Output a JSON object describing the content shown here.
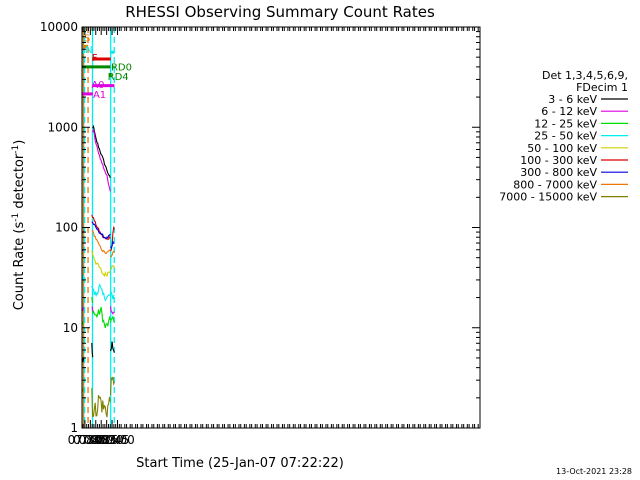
{
  "chart_data": {
    "type": "line",
    "title": "RHESSI Observing Summary Count Rates",
    "xlabel": "Start Time (25-Jan-07 07:22:22)",
    "ylabel_main": "Count Rate (s",
    "ylabel_sup": "-1",
    "ylabel_rest": " detector",
    "ylabel_end": ")",
    "x_start": "07:22:22",
    "x_range_min": [
      442,
      1540
    ],
    "y_scale": "log",
    "ylim": [
      1,
      10000
    ],
    "y_ticks": [
      {
        "v": 1,
        "label": "1"
      },
      {
        "v": 10,
        "label": "10"
      },
      {
        "v": 100,
        "label": "100"
      },
      {
        "v": 1000,
        "label": "1000"
      },
      {
        "v": 10000,
        "label": "10000"
      }
    ],
    "x_ticks": [
      {
        "t": 450,
        "label": "07:30"
      },
      {
        "t": 465,
        "label": "07:45"
      },
      {
        "t": 480,
        "label": "08:00"
      },
      {
        "t": 495,
        "label": "08:15"
      },
      {
        "t": 510,
        "label": "08:30"
      },
      {
        "t": 525,
        "label": "08:45"
      },
      {
        "t": 540,
        "label": "09:00"
      }
    ],
    "legend": {
      "header1": "Det 1,3,4,5,6,9,",
      "header2": "FDecim 1",
      "position": "right"
    },
    "series": [
      {
        "name": "3 - 6 keV",
        "color": "#000000",
        "segments": [
          {
            "t": [
              442.4,
              446.3
            ],
            "v": [
              4.8,
              4.8
            ],
            "noise": 0.06
          },
          {
            "t": [
              469.0,
              471.5
            ],
            "v": [
              6.0,
              4.8
            ],
            "noise": 0.07
          },
          {
            "t": [
              471.5,
              472.2,
              480,
              495,
              510,
              520.2
            ],
            "v": [
              1000,
              1060,
              770,
              540,
              380,
              305
            ],
            "noise": 0.015
          },
          {
            "t": [
              520.6,
              528,
              531.5
            ],
            "v": [
              6.0,
              7.0,
              6.0
            ],
            "noise": 0.07
          }
        ]
      },
      {
        "name": "6 - 12 keV",
        "color": "#e000e0",
        "segments": [
          {
            "t": [
              442.4,
              446.3
            ],
            "v": [
              15,
              15
            ],
            "noise": 0.03
          },
          {
            "t": [
              469.0,
              471.5
            ],
            "v": [
              16,
              15
            ],
            "noise": 0.03
          },
          {
            "t": [
              471.5,
              472.2,
              480,
              495,
              510,
              520.2
            ],
            "v": [
              900,
              1000,
              690,
              460,
              330,
              235
            ],
            "noise": 0.015
          },
          {
            "t": [
              520.6,
              528,
              531.5
            ],
            "v": [
              16,
              14,
              15
            ],
            "noise": 0.03
          }
        ]
      },
      {
        "name": "12 - 25 keV",
        "color": "#00dd00",
        "segments": [
          {
            "t": [
              442.4,
              446.3
            ],
            "v": [
              11,
              11
            ],
            "noise": 0.04
          },
          {
            "t": [
              469.0,
              471.5
            ],
            "v": [
              19,
              17
            ],
            "noise": 0.04
          },
          {
            "t": [
              471.5,
              480,
              495,
              505,
              515,
              520.2
            ],
            "v": [
              15,
              13,
              15,
              10,
              11,
              12
            ],
            "noise": 0.04
          },
          {
            "t": [
              520.6,
              528,
              531.5
            ],
            "v": [
              12,
              12,
              11
            ],
            "noise": 0.04
          }
        ]
      },
      {
        "name": "25 - 50 keV",
        "color": "#00eeee",
        "segments": [
          {
            "t": [
              442.4,
              446.3
            ],
            "v": [
              32,
              32
            ],
            "noise": 0.03
          },
          {
            "t": [
              469.0,
              471.5
            ],
            "v": [
              27,
              24
            ],
            "noise": 0.03
          },
          {
            "t": [
              471.5,
              480,
              490,
              500,
              510,
              520.2
            ],
            "v": [
              24,
              21,
              26,
              21,
              20,
              21
            ],
            "noise": 0.035
          },
          {
            "t": [
              520.6,
              528,
              531.5
            ],
            "v": [
              22,
              20,
              22
            ],
            "noise": 0.03
          }
        ]
      },
      {
        "name": "50 - 100 keV",
        "color": "#d0d000",
        "segments": [
          {
            "t": [
              442.4,
              446.3
            ],
            "v": [
              48,
              48
            ],
            "noise": 0.02
          },
          {
            "t": [
              469.0,
              480,
              490,
              500,
              510,
              520.2
            ],
            "v": [
              58,
              45,
              40,
              34,
              34,
              38
            ],
            "noise": 0.02
          },
          {
            "t": [
              520.6,
              524,
              528,
              531.5
            ],
            "v": [
              40,
              40,
              41,
              40
            ],
            "noise": 0.02
          }
        ]
      },
      {
        "name": "100 - 300 keV",
        "color": "#dd0000",
        "segments": [
          {
            "t": [
              442.4,
              446.3
            ],
            "v": [
              90,
              90
            ],
            "noise": 0.015
          },
          {
            "t": [
              469.0,
              480,
              490,
              500,
              510,
              520.2
            ],
            "v": [
              135,
              108,
              92,
              80,
              76,
              80
            ],
            "noise": 0.012
          },
          {
            "t": [
              520.6,
              524,
              528,
              531.5
            ],
            "v": [
              60,
              60,
              100,
              95
            ],
            "noise": 0.015
          }
        ]
      },
      {
        "name": "300 - 800 keV",
        "color": "#0000dd",
        "segments": [
          {
            "t": [
              442.4,
              446.3
            ],
            "v": [
              60,
              60
            ],
            "noise": 0.015
          },
          {
            "t": [
              469.0,
              480,
              490,
              500,
              510,
              520.2
            ],
            "v": [
              115,
              100,
              90,
              82,
              78,
              84
            ],
            "noise": 0.012
          },
          {
            "t": [
              520.6,
              524,
              528,
              531.5
            ],
            "v": [
              63,
              63,
              72,
              68
            ],
            "noise": 0.015
          }
        ]
      },
      {
        "name": "800 - 7000 keV",
        "color": "#ee7700",
        "segments": [
          {
            "t": [
              442.4,
              446.3
            ],
            "v": [
              55,
              55
            ],
            "noise": 0.015
          },
          {
            "t": [
              469.0,
              480,
              490,
              500,
              510,
              520.2
            ],
            "v": [
              95,
              78,
              66,
              58,
              55,
              60
            ],
            "noise": 0.012
          },
          {
            "t": [
              520.6,
              524,
              528,
              531.5
            ],
            "v": [
              50,
              50,
              60,
              58
            ],
            "noise": 0.015
          }
        ]
      },
      {
        "name": "7000 - 15000 keV",
        "color": "#808000",
        "segments": [
          {
            "t": [
              442.4,
              446.3
            ],
            "v": [
              2.5,
              2.5
            ],
            "noise": 0.07
          },
          {
            "t": [
              469.0,
              472,
              480,
              490,
              500,
              510,
              520.2
            ],
            "v": [
              2.5,
              1.4,
              1.5,
              2.0,
              1.6,
              1.5,
              1.9
            ],
            "noise": 0.1
          },
          {
            "t": [
              520.6,
              531.5
            ],
            "v": [
              2.5,
              3.2
            ],
            "noise": 0.08
          }
        ]
      }
    ],
    "flags": [
      {
        "label": "S",
        "color": "#ee7700",
        "t": [
          446.0,
          459.0
        ],
        "v": 6400,
        "label_t": 447.2,
        "label_v": 7900
      },
      {
        "label": "N",
        "color": "#00eeee",
        "t": [
          442.4,
          447.6
        ],
        "v": 5600,
        "label_t": 450.5,
        "label_v": 6000
      },
      {
        "label": "N",
        "color": "#00eeee",
        "t": [
          521.3,
          531.5
        ],
        "v": 5600,
        "label_t": null,
        "label_v": null
      },
      {
        "label": "F",
        "color": "#dd0000",
        "t": [
          470.2,
          521.0
        ],
        "v": 4800,
        "label_t": 468.8,
        "label_v": 5000
      },
      {
        "label": "RD0",
        "color": "#008800",
        "t": [
          442.4,
          520.2
        ],
        "v": 4000,
        "label_t": null,
        "label_v": null
      },
      {
        "label": "RD0",
        "color": "#008800",
        "t": [
          528.6,
          531.5
        ],
        "v": 4000,
        "label_t": 522.0,
        "label_v": 4050
      },
      {
        "label": "RD4",
        "color": "#008800",
        "t": [
          518.0,
          524.0
        ],
        "v": 3300,
        "label_t": 512.7,
        "label_v": 3250
      },
      {
        "label": "A0",
        "color": "#e000e0",
        "t": [
          470.5,
          531.5
        ],
        "v": 2600,
        "label_t": 467.8,
        "label_v": 2700
      },
      {
        "label": "A1",
        "color": "#e000e0",
        "t": [
          442.4,
          471.8
        ],
        "v": 2150,
        "label_t": 472.2,
        "label_v": 2150
      }
    ],
    "vlines": [
      {
        "t": 442.6,
        "color": "#00eeee",
        "style": "solid"
      },
      {
        "t": 446.5,
        "color": "#ee7700",
        "style": "solid"
      },
      {
        "t": 449.3,
        "color": "#00eeee",
        "style": "dashed"
      },
      {
        "t": 458.7,
        "color": "#ee7700",
        "style": "dashed"
      },
      {
        "t": 471.0,
        "color": "#00eeee",
        "style": "solid"
      },
      {
        "t": 521.2,
        "color": "#00eeee",
        "style": "solid"
      },
      {
        "t": 531.0,
        "color": "#00eeee",
        "style": "dashed"
      }
    ]
  },
  "timestamp": "13-Oct-2021 23:28"
}
